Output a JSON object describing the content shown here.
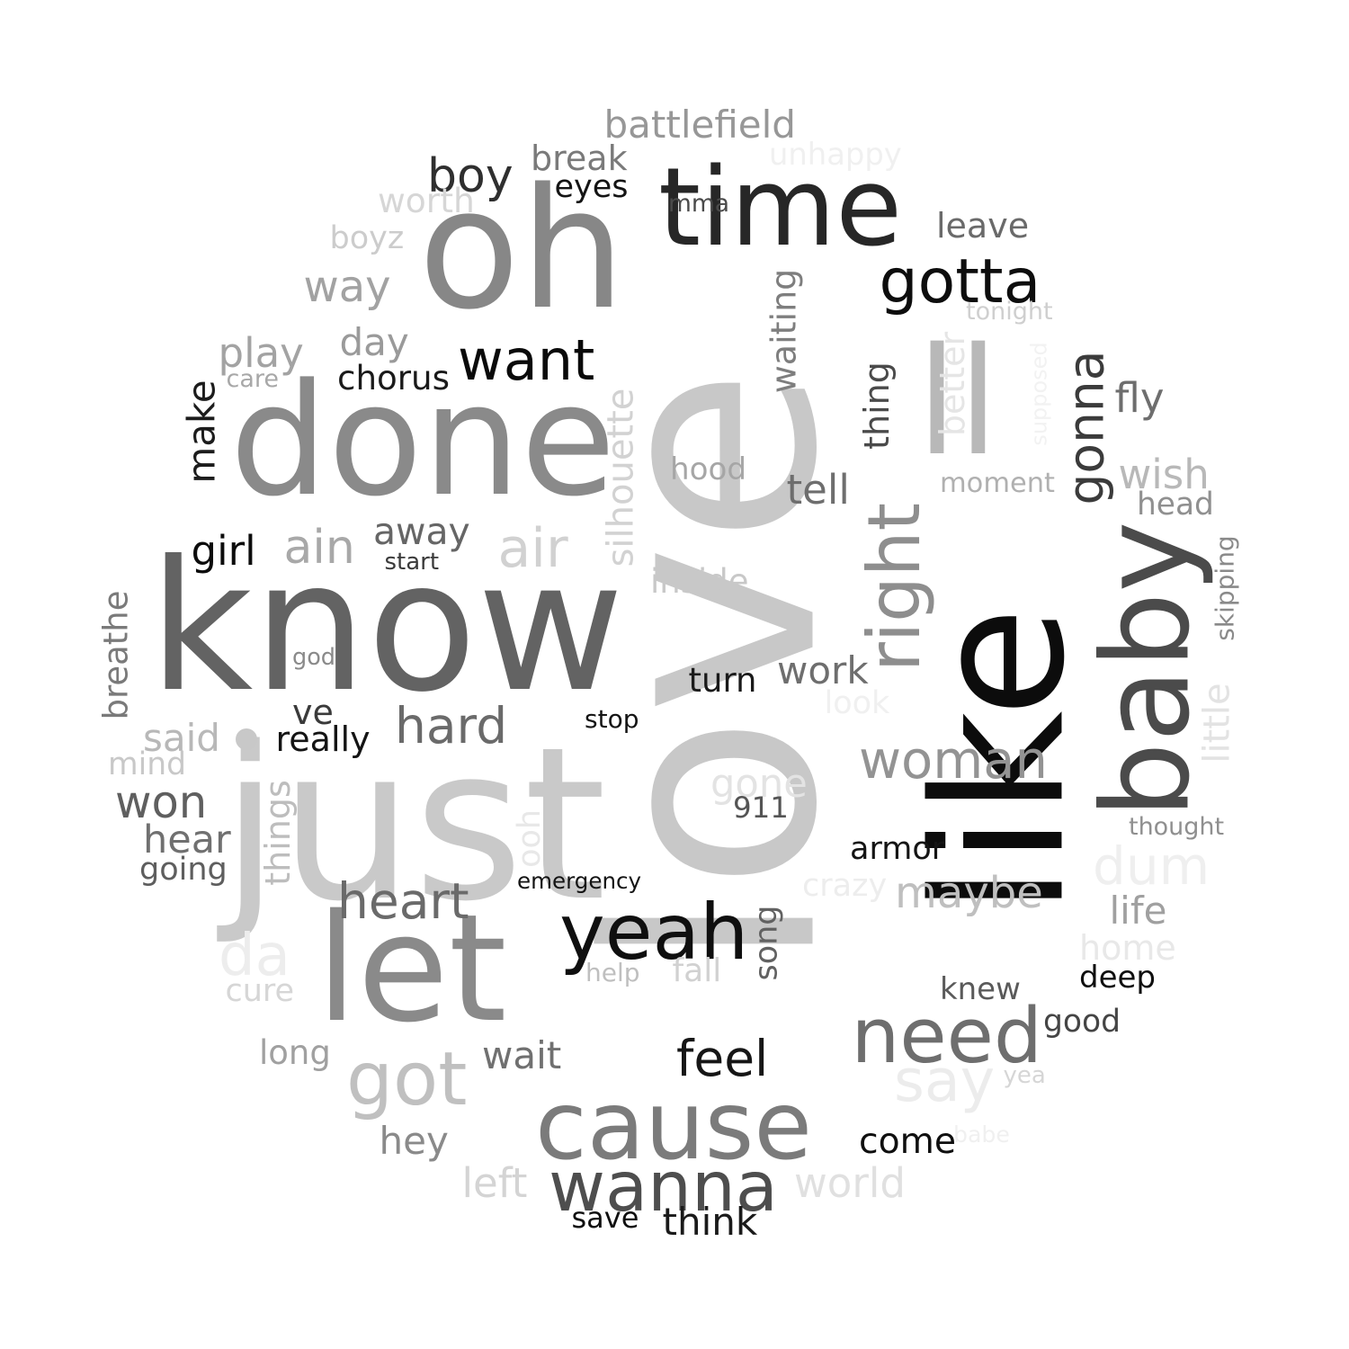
{
  "words": [
    {
      "text": "love",
      "color": "#c8c8c8",
      "vertical": true
    },
    {
      "text": "know",
      "color": "#636363"
    },
    {
      "text": "just",
      "color": "#c9c9c9"
    },
    {
      "text": "done",
      "color": "#8a8a8a"
    },
    {
      "text": "like",
      "color": "#0c0c0c",
      "vertical": true
    },
    {
      "text": "oh",
      "color": "#878787"
    },
    {
      "text": "time",
      "color": "#272727"
    },
    {
      "text": "ll",
      "color": "#b8b8b8"
    },
    {
      "text": "let",
      "color": "#8a8a8a"
    },
    {
      "text": "baby",
      "color": "#4b4b4b",
      "vertical": true
    },
    {
      "text": "cause",
      "color": "#7b7b7b"
    },
    {
      "text": "yeah",
      "color": "#0f0f0f"
    },
    {
      "text": "need",
      "color": "#6e6e6e"
    },
    {
      "text": "right",
      "color": "#8e8e8e",
      "vertical": true
    },
    {
      "text": "gotta",
      "color": "#0d0d0d"
    },
    {
      "text": "want",
      "color": "#0a0a0a"
    },
    {
      "text": "wanna",
      "color": "#4e4e4e"
    },
    {
      "text": "got",
      "color": "#c0c0c0"
    },
    {
      "text": "woman",
      "color": "#939393"
    },
    {
      "text": "gonna",
      "color": "#3b3b3b",
      "vertical": true
    },
    {
      "text": "air",
      "color": "#d1d1d1"
    },
    {
      "text": "boy",
      "color": "#2f2f2f"
    },
    {
      "text": "battlefield",
      "color": "#979797"
    },
    {
      "text": "silhouette",
      "color": "#d2d2d2",
      "vertical": true
    },
    {
      "text": "heart",
      "color": "#6a6a6a"
    },
    {
      "text": "dum",
      "color": "#efefef"
    },
    {
      "text": "say",
      "color": "#ececec"
    },
    {
      "text": "feel",
      "color": "#161616"
    },
    {
      "text": "hard",
      "color": "#6a6a6a"
    },
    {
      "text": "maybe",
      "color": "#bfbfbf"
    },
    {
      "text": "won",
      "color": "#5f5f5f"
    },
    {
      "text": "ain",
      "color": "#a8a8a8"
    },
    {
      "text": "da",
      "color": "#ededed"
    },
    {
      "text": "way",
      "color": "#a2a2a2"
    },
    {
      "text": "make",
      "color": "#1c1c1c",
      "vertical": true
    },
    {
      "text": "work",
      "color": "#6e6e6e"
    },
    {
      "text": "wait",
      "color": "#707070"
    },
    {
      "text": "away",
      "color": "#666666"
    },
    {
      "text": "play",
      "color": "#a3a3a3"
    },
    {
      "text": "tell",
      "color": "#6e6e6e"
    },
    {
      "text": "wish",
      "color": "#b8b8b8"
    },
    {
      "text": "girl",
      "color": "#0c0c0c"
    },
    {
      "text": "hear",
      "color": "#707070"
    },
    {
      "text": "come",
      "color": "#0f0f0f"
    },
    {
      "text": "gone",
      "color": "#e3e3e3"
    },
    {
      "text": "fly",
      "color": "#6e6e6e"
    },
    {
      "text": "hey",
      "color": "#8a8a8a"
    },
    {
      "text": "life",
      "color": "#a0a0a0"
    },
    {
      "text": "think",
      "color": "#1a1a1a"
    },
    {
      "text": "day",
      "color": "#9a9a9a"
    },
    {
      "text": "world",
      "color": "#e0e0e0"
    },
    {
      "text": "left",
      "color": "#d4d4d4"
    },
    {
      "text": "better",
      "color": "#e5e5e5",
      "vertical": true
    },
    {
      "text": "home",
      "color": "#e8e8e8"
    },
    {
      "text": "said",
      "color": "#b8b8b8"
    },
    {
      "text": "chorus",
      "color": "#1a1a1a"
    },
    {
      "text": "ve",
      "color": "#3a3a3a"
    },
    {
      "text": "ooh",
      "color": "#e8e8e8",
      "vertical": true
    },
    {
      "text": "waiting",
      "color": "#7e7e7e",
      "vertical": true
    },
    {
      "text": "leave",
      "color": "#6a6a6a"
    },
    {
      "text": "break",
      "color": "#7a7a7a"
    },
    {
      "text": "things",
      "color": "#bdbdbd",
      "vertical": true
    },
    {
      "text": "really",
      "color": "#141414"
    },
    {
      "text": "turn",
      "color": "#1a1a1a"
    },
    {
      "text": "going",
      "color": "#5e5e5e"
    },
    {
      "text": "hood",
      "color": "#a6a6a6"
    },
    {
      "text": "moment",
      "color": "#b0b0b0"
    },
    {
      "text": "head",
      "color": "#909090"
    },
    {
      "text": "knew",
      "color": "#5a5a5a"
    },
    {
      "text": "deep",
      "color": "#0f0f0f"
    },
    {
      "text": "good",
      "color": "#454545"
    },
    {
      "text": "fall",
      "color": "#d1d1d1"
    },
    {
      "text": "long",
      "color": "#a0a0a0"
    },
    {
      "text": "eyes",
      "color": "#141414"
    },
    {
      "text": "worth",
      "color": "#d6d6d6"
    },
    {
      "text": "unhappy",
      "color": "#f0f0f0"
    },
    {
      "text": "inside",
      "color": "#c8c8c8"
    },
    {
      "text": "mind",
      "color": "#c8c8c8"
    },
    {
      "text": "song",
      "color": "#616161",
      "vertical": true
    },
    {
      "text": "breathe",
      "color": "#7a7a7a",
      "vertical": true
    },
    {
      "text": "boyz",
      "color": "#cccccc"
    },
    {
      "text": "armor",
      "color": "#141414"
    },
    {
      "text": "thing",
      "color": "#4a4a4a",
      "vertical": true
    },
    {
      "text": "crazy",
      "color": "#ededed"
    },
    {
      "text": "little",
      "color": "#e3e3e3",
      "vertical": true
    },
    {
      "text": "cure",
      "color": "#d6d6d6"
    },
    {
      "text": "911",
      "color": "#545454"
    },
    {
      "text": "mma",
      "color": "#4a4a4a"
    },
    {
      "text": "look",
      "color": "#f0f0f0"
    },
    {
      "text": "emergency",
      "color": "#141414"
    },
    {
      "text": "save",
      "color": "#0f0f0f"
    },
    {
      "text": "tonight",
      "color": "#cfcfcf"
    },
    {
      "text": "stop",
      "color": "#141414"
    },
    {
      "text": "start",
      "color": "#3a3a3a"
    },
    {
      "text": "skipping",
      "color": "#8a8a8a",
      "vertical": true
    },
    {
      "text": "help",
      "color": "#bfbfbf"
    },
    {
      "text": "thought",
      "color": "#8f8f8f"
    },
    {
      "text": "god",
      "color": "#8a8a8a"
    },
    {
      "text": "care",
      "color": "#a8a8a8"
    },
    {
      "text": "yea",
      "color": "#d6d6d6"
    },
    {
      "text": "babe",
      "color": "#f0f0f0"
    },
    {
      "text": "supposed",
      "color": "#f2f2f2",
      "vertical": true
    }
  ],
  "dot": {
    "color": "#c8c8c8"
  }
}
